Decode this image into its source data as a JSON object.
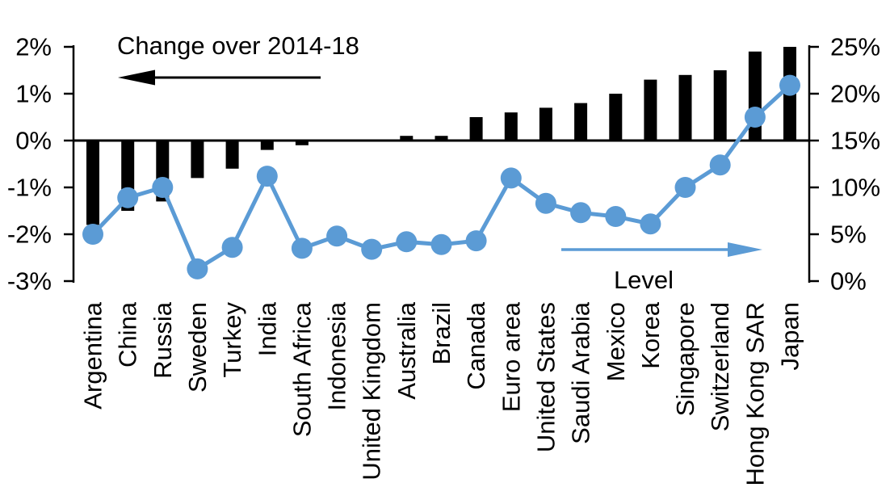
{
  "chart_data": {
    "type": "combo",
    "background": "#ffffff",
    "grid": false,
    "categories": [
      "Argentina",
      "China",
      "Russia",
      "Sweden",
      "Turkey",
      "India",
      "South Africa",
      "Indonesia",
      "United Kingdom",
      "Australia",
      "Brazil",
      "Canada",
      "Euro area",
      "United States",
      "Saudi Arabia",
      "Mexico",
      "Korea",
      "Singapore",
      "Switzerland",
      "Hong Kong SAR",
      "Japan"
    ],
    "series": [
      {
        "name": "Change over 2014-18",
        "type": "bar",
        "axis": "left",
        "color": "#000000",
        "values": [
          -1.8,
          -1.5,
          -1.3,
          -0.8,
          -0.6,
          -0.2,
          -0.1,
          0,
          0,
          0.1,
          0.1,
          0.5,
          0.6,
          0.7,
          0.8,
          1.0,
          1.3,
          1.4,
          1.5,
          1.9,
          2.0
        ]
      },
      {
        "name": "Level",
        "type": "line",
        "axis": "right",
        "color": "#5b9bd5",
        "values": [
          5.0,
          8.9,
          10.0,
          1.3,
          3.6,
          11.2,
          3.5,
          4.8,
          3.4,
          4.2,
          3.9,
          4.3,
          11.0,
          8.3,
          7.3,
          6.9,
          6.1,
          10.0,
          12.4,
          17.5,
          20.9
        ]
      }
    ],
    "left_axis": {
      "min": -3,
      "max": 2,
      "tick_values": [
        2,
        1,
        0,
        -1,
        -2,
        -3
      ],
      "tick_labels": [
        "2%",
        "1%",
        "0%",
        "-1%",
        "-2%",
        "-3%"
      ]
    },
    "right_axis": {
      "min": 0,
      "max": 25,
      "tick_values": [
        25,
        20,
        15,
        10,
        5,
        0
      ],
      "tick_labels": [
        "25%",
        "20%",
        "15%",
        "10%",
        "5%",
        "0%"
      ]
    },
    "annotations": {
      "bar_label_arrow_direction": "left",
      "line_label_arrow_direction": "right"
    }
  }
}
